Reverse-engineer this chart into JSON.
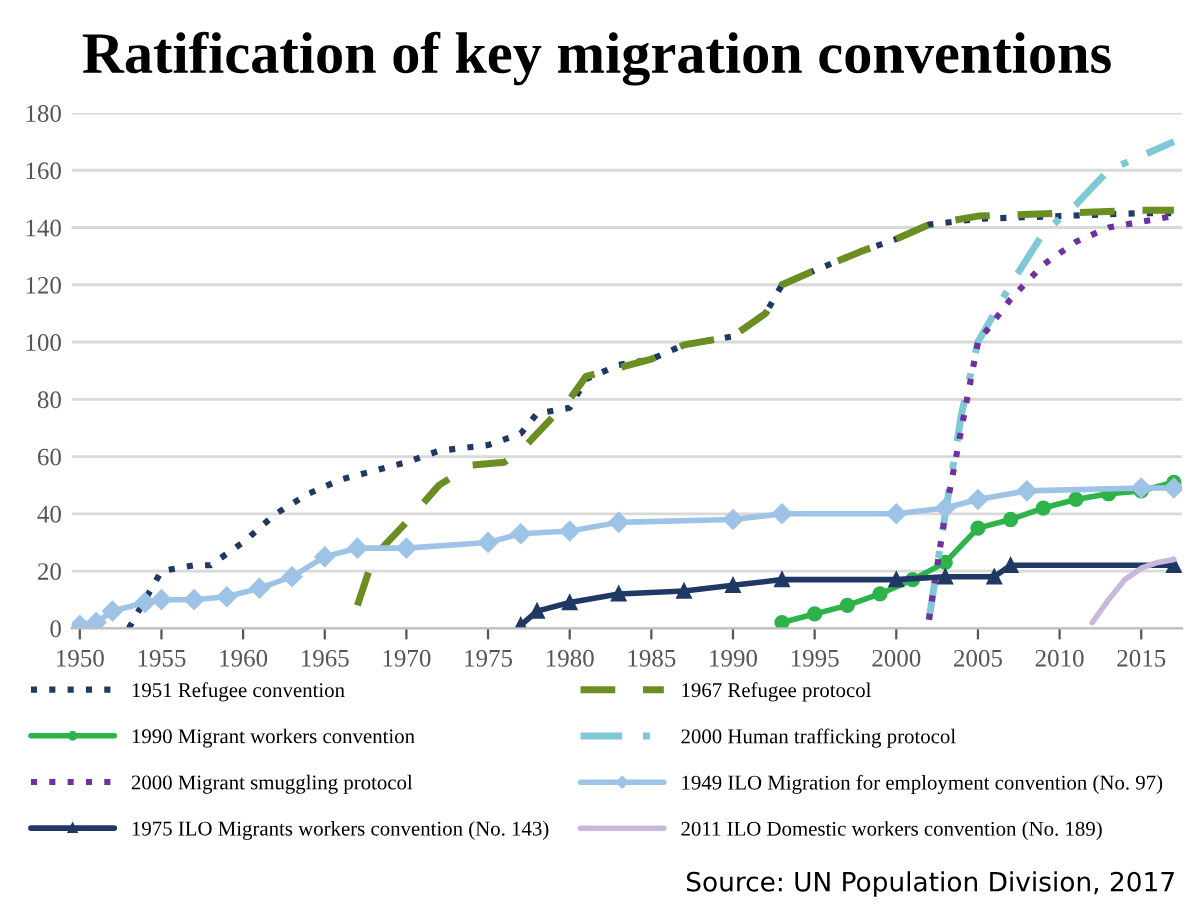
{
  "chart_data": {
    "type": "line",
    "title": "Ratification of key migration conventions",
    "xlim": [
      1949.5,
      2017.5
    ],
    "xticks": [
      1950,
      1955,
      1960,
      1965,
      1970,
      1975,
      1980,
      1985,
      1990,
      1995,
      2000,
      2005,
      2010,
      2015
    ],
    "ylim": [
      0,
      180
    ],
    "yticks": [
      0,
      20,
      40,
      60,
      80,
      100,
      120,
      140,
      160,
      180
    ],
    "grid": "y",
    "legend": "bottom",
    "annotations": [
      "Source: UN Population Division, 2017"
    ],
    "series": [
      {
        "name": "1951 Refugee convention",
        "color": "#1f3864",
        "line_style": "dotted",
        "marker": "none",
        "x": [
          1953,
          1955,
          1957,
          1958,
          1960,
          1962,
          1964,
          1966,
          1968,
          1970,
          1972,
          1975,
          1977,
          1978,
          1980,
          1981,
          1983,
          1985,
          1987,
          1990,
          1992,
          1993,
          1995,
          1998,
          2000,
          2002,
          2005,
          2010,
          2015,
          2017
        ],
        "values": [
          0,
          20,
          22,
          22,
          30,
          40,
          47,
          52,
          55,
          58,
          62,
          64,
          68,
          75,
          77,
          87,
          92,
          94,
          99,
          102,
          110,
          120,
          125,
          132,
          136,
          141,
          143,
          144,
          145,
          145
        ]
      },
      {
        "name": "1967 Refugee protocol",
        "color": "#6b8e23",
        "line_style": "dashed",
        "marker": "none",
        "x": [
          1967,
          1968,
          1970,
          1972,
          1974,
          1976,
          1977,
          1978,
          1980,
          1981,
          1985,
          1987,
          1990,
          1992,
          1993,
          1995,
          1998,
          2000,
          2002,
          2005,
          2010,
          2015,
          2017
        ],
        "values": [
          8,
          25,
          37,
          50,
          57,
          58,
          62,
          68,
          80,
          88,
          94,
          99,
          102,
          110,
          120,
          125,
          132,
          136,
          141,
          144,
          145,
          146,
          146
        ]
      },
      {
        "name": "1990 Migrant workers convention",
        "color": "#2db34a",
        "line_style": "solid",
        "marker": "circle",
        "x": [
          1993,
          1995,
          1997,
          1999,
          2001,
          2003,
          2005,
          2007,
          2009,
          2011,
          2013,
          2015,
          2017
        ],
        "values": [
          2,
          5,
          8,
          12,
          17,
          23,
          35,
          38,
          42,
          45,
          47,
          48,
          51
        ]
      },
      {
        "name": "2000 Human trafficking protocol",
        "color": "#7ec8d8",
        "line_style": "dashdot",
        "marker": "none",
        "x": [
          2002,
          2003,
          2004,
          2005,
          2007,
          2009,
          2011,
          2013,
          2017
        ],
        "values": [
          3,
          40,
          75,
          100,
          120,
          138,
          148,
          160,
          170
        ]
      },
      {
        "name": "2000 Migrant smuggling protocol",
        "color": "#7030a0",
        "line_style": "dotted",
        "marker": "none",
        "x": [
          2002,
          2003,
          2004,
          2005,
          2007,
          2009,
          2011,
          2013,
          2015,
          2017
        ],
        "values": [
          3,
          40,
          70,
          100,
          115,
          127,
          135,
          140,
          142,
          144
        ]
      },
      {
        "name": "1949 ILO Migration for employment convention (No. 97)",
        "color": "#9dc3e6",
        "line_style": "solid",
        "marker": "diamond",
        "x": [
          1950,
          1951,
          1952,
          1954,
          1955,
          1957,
          1959,
          1961,
          1963,
          1965,
          1967,
          1970,
          1975,
          1977,
          1980,
          1983,
          1990,
          1993,
          2000,
          2003,
          2005,
          2008,
          2015,
          2017
        ],
        "values": [
          1,
          2,
          6,
          9,
          10,
          10,
          11,
          14,
          18,
          25,
          28,
          28,
          30,
          33,
          34,
          37,
          38,
          40,
          40,
          42,
          45,
          48,
          49,
          49
        ]
      },
      {
        "name": "1975 ILO Migrants workers convention (No. 143)",
        "color": "#1f3864",
        "line_style": "solid",
        "marker": "triangle",
        "x": [
          1977,
          1978,
          1980,
          1983,
          1987,
          1990,
          1993,
          2000,
          2003,
          2006,
          2007,
          2017
        ],
        "values": [
          1,
          6,
          9,
          12,
          13,
          15,
          17,
          17,
          18,
          18,
          22,
          22
        ]
      },
      {
        "name": "2011 ILO Domestic workers convention (No. 189)",
        "color": "#c9b8dc",
        "line_style": "solid",
        "marker": "none",
        "x": [
          2012,
          2013,
          2014,
          2015,
          2016,
          2017
        ],
        "values": [
          2,
          10,
          17,
          21,
          23,
          24
        ]
      }
    ]
  }
}
